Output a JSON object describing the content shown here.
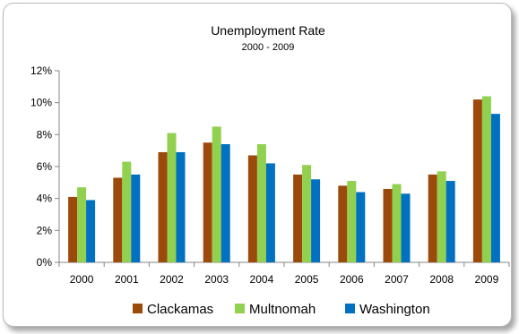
{
  "chart_data": {
    "type": "bar",
    "title": "Unemployment Rate",
    "subtitle": "2000 - 2009",
    "xlabel": "",
    "ylabel": "",
    "categories": [
      "2000",
      "2001",
      "2002",
      "2003",
      "2004",
      "2005",
      "2006",
      "2007",
      "2008",
      "2009"
    ],
    "series": [
      {
        "name": "Clackamas",
        "values": [
          4.1,
          5.3,
          6.9,
          7.5,
          6.7,
          5.5,
          4.8,
          4.6,
          5.5,
          10.2
        ]
      },
      {
        "name": "Multnomah",
        "values": [
          4.7,
          6.3,
          8.1,
          8.5,
          7.4,
          6.1,
          5.1,
          4.9,
          5.7,
          10.4
        ]
      },
      {
        "name": "Washington",
        "values": [
          3.9,
          5.5,
          6.9,
          7.4,
          6.2,
          5.2,
          4.4,
          4.3,
          5.1,
          9.3
        ]
      }
    ],
    "ylim": [
      0,
      12
    ],
    "yticks": [
      0,
      2,
      4,
      6,
      8,
      10,
      12
    ],
    "ytick_labels": [
      "0%",
      "2%",
      "4%",
      "6%",
      "8%",
      "10%",
      "12%"
    ],
    "grid": false,
    "legend_position": "bottom",
    "colors": {
      "Clackamas": "#9c4a0c",
      "Multnomah": "#92d050",
      "Washington": "#0070c0"
    }
  }
}
